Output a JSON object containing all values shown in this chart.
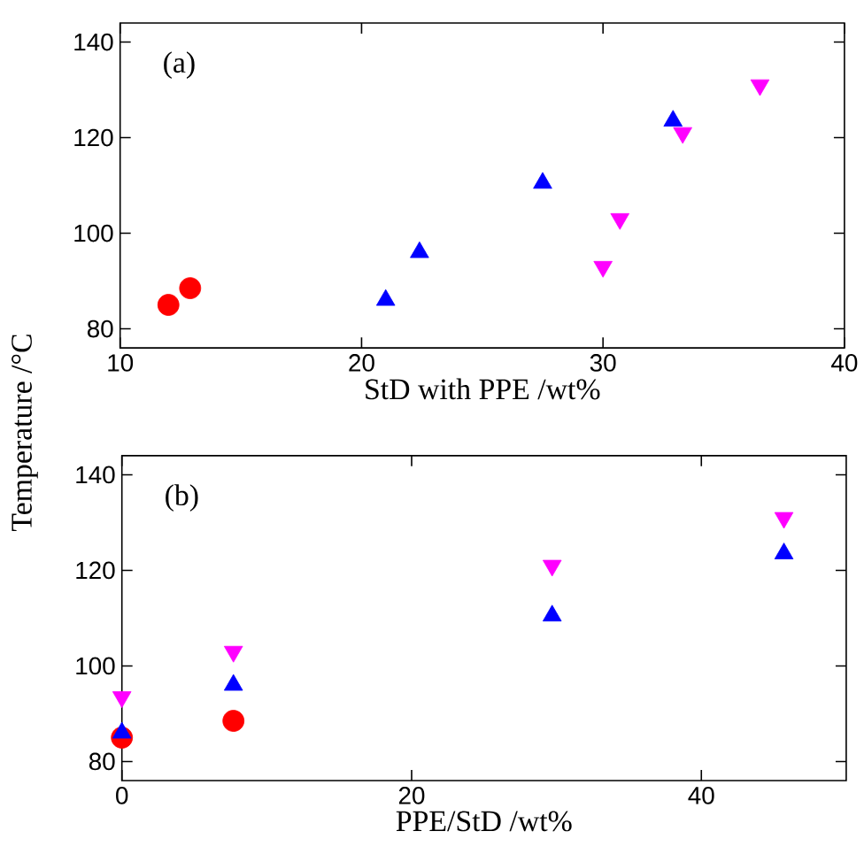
{
  "chart_data": [
    {
      "type": "scatter",
      "xlabel": "StD with PPE /wt%",
      "ylabel": "Temperature /°C",
      "annotations": [
        "(a)"
      ],
      "xlim": [
        10,
        40
      ],
      "ylim": [
        76,
        144
      ],
      "xticks": [
        10,
        20,
        30,
        40
      ],
      "yticks": [
        80,
        100,
        120,
        140
      ],
      "series": [
        {
          "color": "#ff0000",
          "marker": "circle",
          "x": [
            12,
            12.9
          ],
          "values": [
            85,
            88.5
          ]
        },
        {
          "color": "#0000ff",
          "marker": "triangle",
          "x": [
            21,
            22.4,
            27.5,
            32.9
          ],
          "values": [
            86,
            96,
            110.5,
            123.5
          ]
        },
        {
          "color": "#ff00ff",
          "marker": "triangle down",
          "x": [
            30,
            30.7,
            33.3,
            36.5
          ],
          "values": [
            93,
            103,
            121,
            131
          ]
        }
      ]
    },
    {
      "type": "scatter",
      "xlabel": "PPE/StD /wt%",
      "annotations": [
        "(b)"
      ],
      "xlim": [
        0,
        50
      ],
      "ylim": [
        76,
        144
      ],
      "xticks": [
        0,
        20,
        40
      ],
      "yticks": [
        80,
        100,
        120,
        140
      ],
      "series": [
        {
          "color": "#ff0000",
          "marker": "circle",
          "x": [
            0,
            7.7
          ],
          "values": [
            85,
            88.5
          ]
        },
        {
          "color": "#0000ff",
          "marker": "triangle",
          "x": [
            0,
            7.7,
            29.7,
            45.7
          ],
          "values": [
            86,
            96,
            110.5,
            123.5
          ]
        },
        {
          "color": "#ff00ff",
          "marker": "triangle down",
          "x": [
            0,
            7.7,
            29.7,
            45.7
          ],
          "values": [
            93.5,
            103,
            121,
            131
          ]
        }
      ]
    }
  ]
}
